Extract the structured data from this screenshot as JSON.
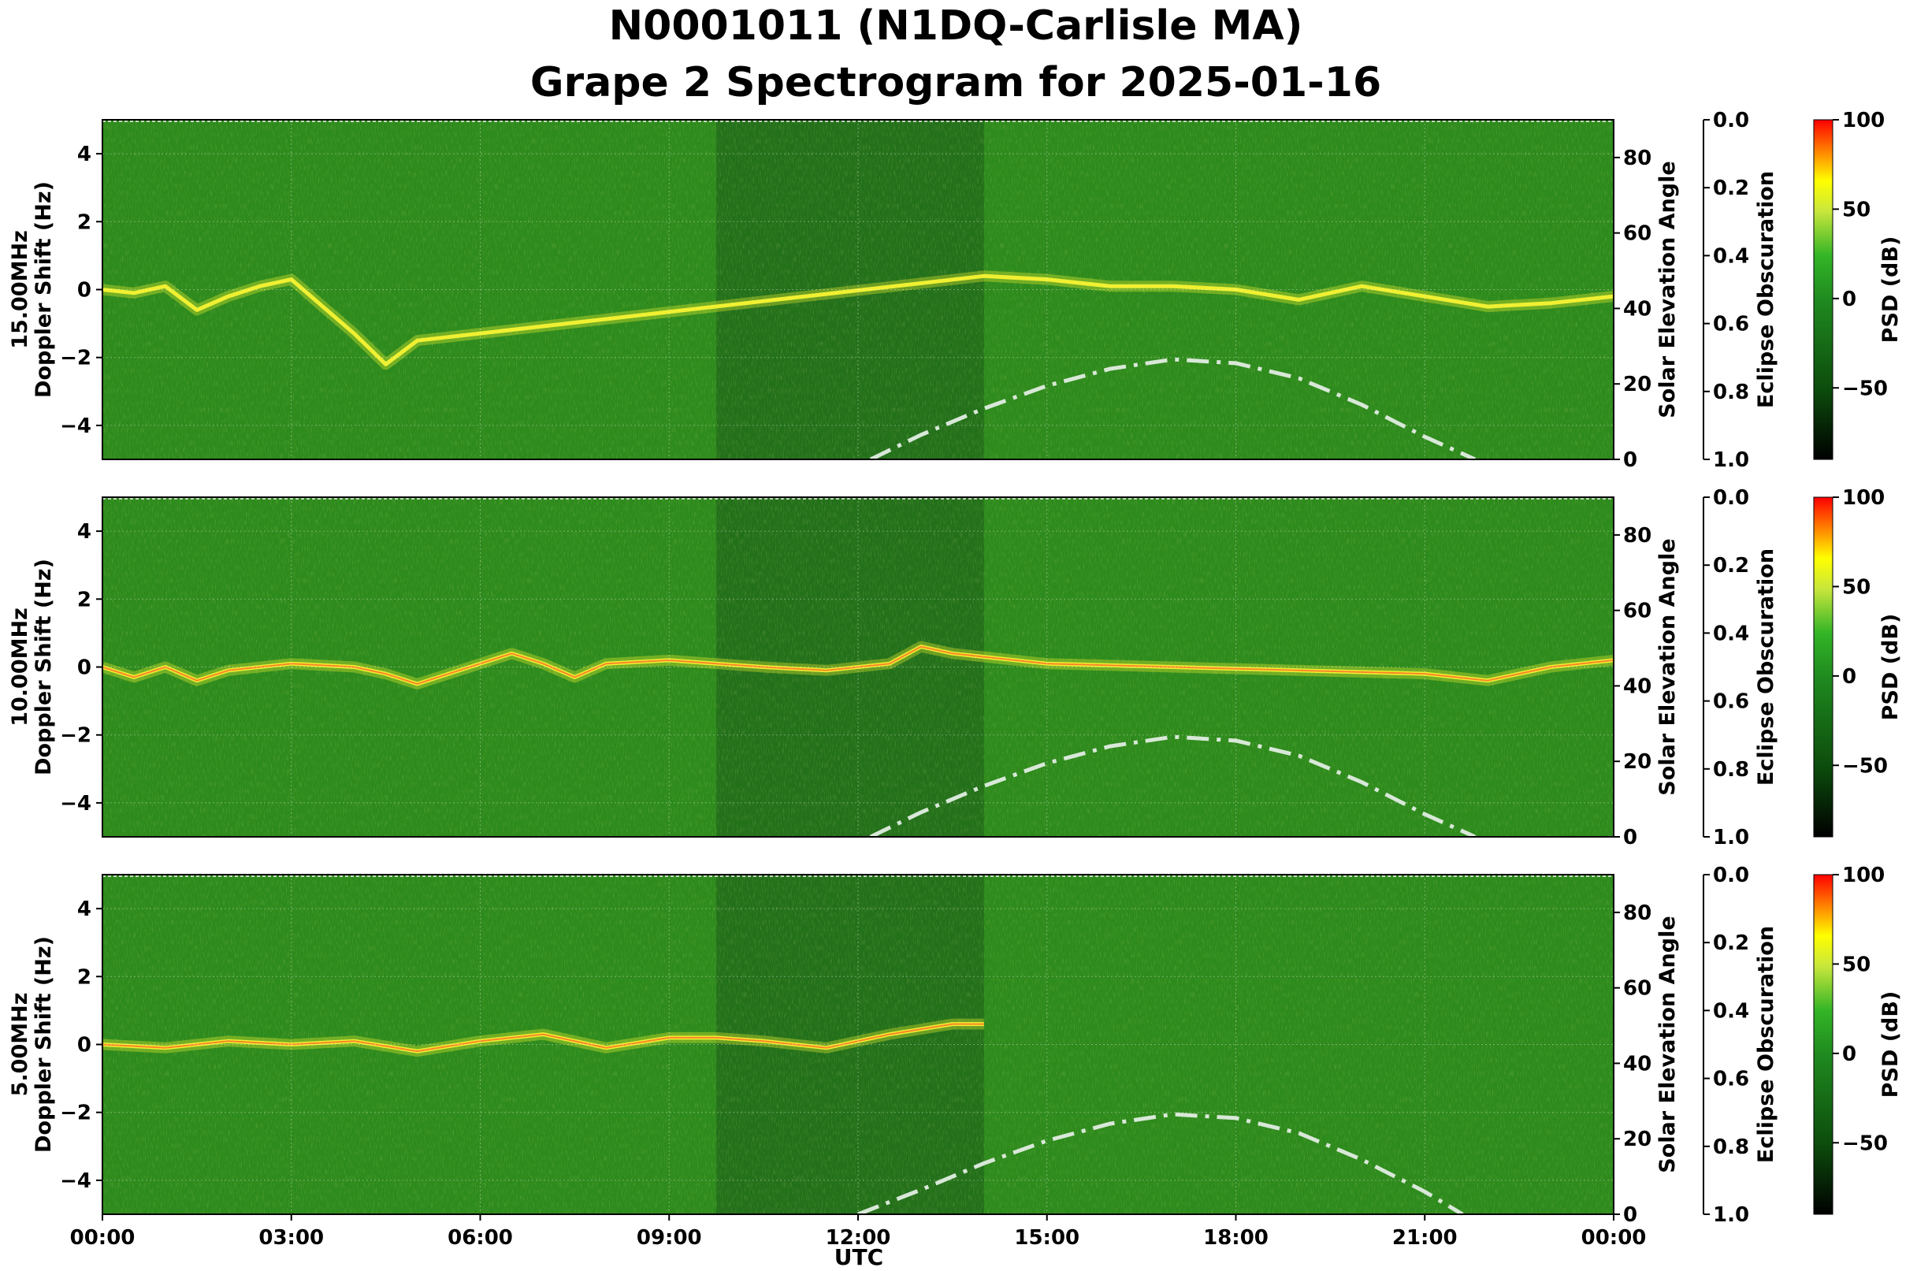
{
  "title": {
    "line1": "N0001011 (N1DQ-Carlisle MA)",
    "line2": "Grape 2 Spectrogram for 2025-01-16"
  },
  "xaxis": {
    "label": "UTC",
    "ticks": [
      "00:00",
      "03:00",
      "06:00",
      "09:00",
      "12:00",
      "15:00",
      "18:00",
      "21:00",
      "00:00"
    ]
  },
  "colors": {
    "background_green": "#2d8a1c",
    "dark_band_green": "#23701a",
    "signal_yellow": "#f0f032",
    "signal_red": "#ff4020",
    "elevation_curve": "#d8e8d8"
  },
  "chart_data": [
    {
      "type": "heatmap",
      "frequency_label": "15.00MHz",
      "ylabel": "Doppler Shift (Hz)",
      "ylim": [
        -5,
        5
      ],
      "yticks": [
        -4,
        -2,
        0,
        2,
        4
      ],
      "xlim_hours": [
        0,
        24
      ],
      "dark_band_hours": [
        9.75,
        14.0
      ],
      "grid": true,
      "solar_elevation": {
        "label": "Solar Elevation Angle",
        "ylim": [
          0,
          90
        ],
        "ticks": [
          0,
          20,
          40,
          60,
          80
        ],
        "hours": [
          12.2,
          13,
          14,
          15,
          16,
          17,
          18,
          19,
          20,
          21,
          21.8
        ],
        "degrees": [
          0,
          6.5,
          13.5,
          19.5,
          24,
          26.5,
          25.5,
          21.5,
          14.5,
          6,
          0
        ]
      },
      "eclipse": {
        "label": "Eclipse Obscuration",
        "ticks": [
          "0.0",
          "0.2",
          "0.4",
          "0.6",
          "0.8",
          "1.0"
        ]
      },
      "colorbar": {
        "label": "PSD (dB)",
        "ticks": [
          100,
          50,
          0,
          -50
        ],
        "range": [
          -90,
          100
        ]
      },
      "signal_trace": {
        "hours": [
          0,
          0.5,
          1,
          1.5,
          2,
          2.5,
          3,
          3.5,
          4,
          4.5,
          5,
          14,
          15,
          16,
          17,
          18,
          19,
          20,
          21,
          22,
          23,
          24
        ],
        "doppler_hz": [
          0,
          -0.1,
          0.1,
          -0.6,
          -0.2,
          0.1,
          0.3,
          -0.5,
          -1.3,
          -2.2,
          -1.5,
          0.4,
          0.3,
          0.1,
          0.1,
          0,
          -0.3,
          0.1,
          -0.2,
          -0.5,
          -0.4,
          -0.2
        ]
      }
    },
    {
      "type": "heatmap",
      "frequency_label": "10.00MHz",
      "ylabel": "Doppler Shift (Hz)",
      "ylim": [
        -5,
        5
      ],
      "yticks": [
        -4,
        -2,
        0,
        2,
        4
      ],
      "xlim_hours": [
        0,
        24
      ],
      "dark_band_hours": [
        9.75,
        14.0
      ],
      "grid": true,
      "solar_elevation": {
        "label": "Solar Elevation Angle",
        "ylim": [
          0,
          90
        ],
        "ticks": [
          0,
          20,
          40,
          60,
          80
        ],
        "hours": [
          12.2,
          13,
          14,
          15,
          16,
          17,
          18,
          19,
          20,
          21,
          21.8
        ],
        "degrees": [
          0,
          6.5,
          13.5,
          19.5,
          24,
          26.5,
          25.5,
          21.5,
          14.5,
          6,
          0
        ]
      },
      "eclipse": {
        "label": "Eclipse Obscuration",
        "ticks": [
          "0.0",
          "0.2",
          "0.4",
          "0.6",
          "0.8",
          "1.0"
        ]
      },
      "colorbar": {
        "label": "PSD (dB)",
        "ticks": [
          100,
          50,
          0,
          -50
        ],
        "range": [
          -90,
          100
        ]
      },
      "signal_trace": {
        "hours": [
          0,
          0.5,
          1,
          1.5,
          2,
          3,
          4,
          4.5,
          5,
          5.5,
          6.5,
          7,
          7.5,
          8,
          9,
          9.75,
          10.5,
          11.5,
          12.5,
          13,
          13.5,
          14,
          15,
          17,
          19,
          21,
          22,
          23,
          24
        ],
        "doppler_hz": [
          0,
          -0.3,
          0,
          -0.4,
          -0.1,
          0.1,
          0,
          -0.2,
          -0.5,
          -0.2,
          0.4,
          0.1,
          -0.3,
          0.1,
          0.2,
          0.1,
          0,
          -0.1,
          0.1,
          0.6,
          0.4,
          0.3,
          0.1,
          0,
          -0.1,
          -0.2,
          -0.4,
          0,
          0.2
        ]
      }
    },
    {
      "type": "heatmap",
      "frequency_label": "5.00MHz",
      "ylabel": "Doppler Shift (Hz)",
      "ylim": [
        -5,
        5
      ],
      "yticks": [
        -4,
        -2,
        0,
        2,
        4
      ],
      "xlim_hours": [
        0,
        24
      ],
      "dark_band_hours": [
        9.75,
        14.0
      ],
      "grid": true,
      "solar_elevation": {
        "label": "Solar Elevation Angle",
        "ylim": [
          0,
          90
        ],
        "ticks": [
          0,
          20,
          40,
          60,
          80
        ],
        "hours": [
          12.0,
          13,
          14,
          15,
          16,
          17,
          18,
          19,
          20,
          21,
          21.6
        ],
        "degrees": [
          0,
          6.5,
          13.5,
          19.5,
          24,
          26.5,
          25.5,
          21.5,
          14.5,
          6,
          0
        ]
      },
      "eclipse": {
        "label": "Eclipse Obscuration",
        "ticks": [
          "0.0",
          "0.2",
          "0.4",
          "0.6",
          "0.8",
          "1.0"
        ]
      },
      "colorbar": {
        "label": "PSD (dB)",
        "ticks": [
          100,
          50,
          0,
          -50
        ],
        "range": [
          -90,
          100
        ]
      },
      "signal_trace": {
        "hours": [
          0,
          1,
          2,
          3,
          4,
          5,
          6,
          7,
          8,
          9,
          9.75,
          10.5,
          11.5,
          12.5,
          13.5,
          14
        ],
        "doppler_hz": [
          0,
          -0.1,
          0.1,
          0,
          0.1,
          -0.2,
          0.1,
          0.3,
          -0.1,
          0.2,
          0.2,
          0.1,
          -0.1,
          0.3,
          0.6,
          0.6
        ]
      }
    }
  ]
}
